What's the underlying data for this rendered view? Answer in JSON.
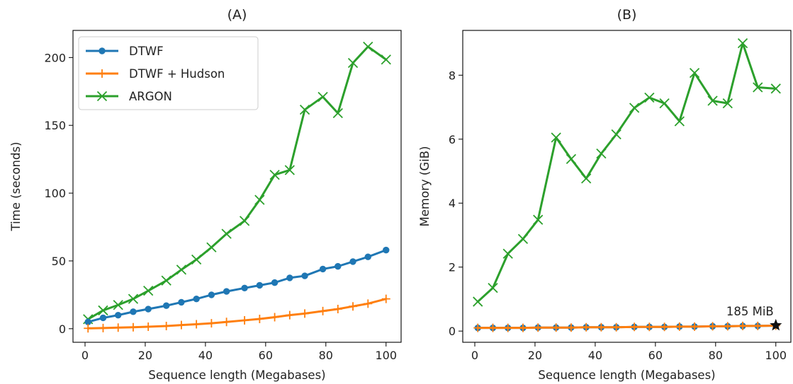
{
  "chart_data": [
    {
      "type": "line",
      "title": "(A)",
      "xlabel": "Sequence length (Megabases)",
      "ylabel": "Time (seconds)",
      "xlim": [
        -4,
        105
      ],
      "ylim": [
        -10,
        220
      ],
      "xticks": [
        0,
        20,
        40,
        60,
        80,
        100
      ],
      "yticks": [
        0,
        50,
        100,
        150,
        200
      ],
      "grid": false,
      "legend_position": "top-left",
      "x": [
        1,
        6,
        11,
        16,
        21,
        27,
        32,
        37,
        42,
        47,
        53,
        58,
        63,
        68,
        73,
        79,
        84,
        89,
        94,
        100
      ],
      "series": [
        {
          "name": "DTWF",
          "marker": "circle",
          "color": "#1f77b4",
          "values": [
            5,
            8,
            10,
            12.5,
            14.5,
            17,
            19.5,
            22,
            25,
            27.5,
            30,
            32,
            34,
            37.5,
            39,
            44,
            46,
            49.5,
            53,
            58
          ]
        },
        {
          "name": "DTWF + Hudson",
          "marker": "plus",
          "color": "#ff7f0e",
          "values": [
            0.3,
            0.5,
            0.8,
            1.1,
            1.5,
            2,
            2.7,
            3.3,
            4,
            5,
            6.2,
            7.2,
            8.5,
            10,
            11.2,
            13,
            14.5,
            16.5,
            18.5,
            22
          ]
        },
        {
          "name": "ARGON",
          "marker": "x",
          "color": "#2ca02c",
          "values": [
            7,
            13.5,
            17.5,
            22,
            28,
            35.5,
            43.5,
            51,
            60,
            70,
            79.5,
            95,
            113.5,
            117,
            161.5,
            171,
            159,
            196,
            208,
            198.5
          ]
        }
      ]
    },
    {
      "type": "line",
      "title": "(B)",
      "xlabel": "Sequence length (Megabases)",
      "ylabel": "Memory (GiB)",
      "xlim": [
        -4,
        105
      ],
      "ylim": [
        -0.35,
        9.4
      ],
      "xticks": [
        0,
        20,
        40,
        60,
        80,
        100
      ],
      "yticks": [
        0,
        2,
        4,
        6,
        8
      ],
      "grid": false,
      "x": [
        1,
        6,
        11,
        16,
        21,
        27,
        32,
        37,
        42,
        47,
        53,
        58,
        63,
        68,
        73,
        79,
        84,
        89,
        94,
        100
      ],
      "series": [
        {
          "name": "DTWF",
          "marker": "circle",
          "color": "#1f77b4",
          "values": [
            0.1,
            0.1,
            0.1,
            0.1,
            0.11,
            0.11,
            0.11,
            0.12,
            0.12,
            0.12,
            0.13,
            0.13,
            0.13,
            0.14,
            0.14,
            0.15,
            0.15,
            0.16,
            0.16,
            0.17
          ]
        },
        {
          "name": "DTWF + Hudson",
          "marker": "plus",
          "color": "#ff7f0e",
          "values": [
            0.1,
            0.1,
            0.1,
            0.1,
            0.11,
            0.11,
            0.11,
            0.12,
            0.12,
            0.12,
            0.13,
            0.13,
            0.13,
            0.14,
            0.14,
            0.15,
            0.15,
            0.16,
            0.16,
            0.17
          ]
        },
        {
          "name": "ARGON",
          "marker": "x",
          "color": "#2ca02c",
          "values": [
            0.92,
            1.35,
            2.42,
            2.88,
            3.48,
            6.05,
            5.38,
            4.77,
            5.55,
            6.15,
            6.98,
            7.3,
            7.12,
            6.56,
            8.07,
            7.2,
            7.12,
            9.0,
            7.62,
            7.58
          ]
        }
      ],
      "annotation": {
        "text": "185 MiB",
        "x": 100,
        "y": 0.18,
        "marker": "star",
        "color": "#111111"
      }
    }
  ]
}
